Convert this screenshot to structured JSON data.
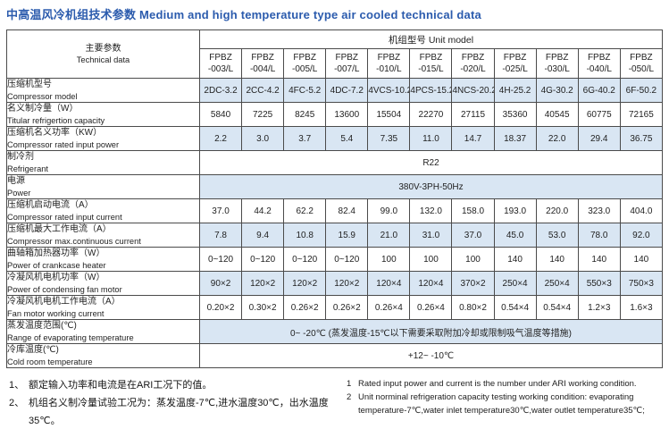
{
  "title": "中高温风冷机组技术参数 Medium and high temperature type air cooled technical data",
  "colors": {
    "title_blue": "#2b5bad",
    "row_shade": "#d9e6f3",
    "border": "#4b4b4b"
  },
  "table": {
    "corner": {
      "cn": "主要参数",
      "en": "Technical data"
    },
    "unit_model_header": "机组型号  Unit model",
    "unit_models": [
      {
        "line1": "FPBZ",
        "line2": "-003/L"
      },
      {
        "line1": "FPBZ",
        "line2": "-004/L"
      },
      {
        "line1": "FPBZ",
        "line2": "-005/L"
      },
      {
        "line1": "FPBZ",
        "line2": "-007/L"
      },
      {
        "line1": "FPBZ",
        "line2": "-010/L"
      },
      {
        "line1": "FPBZ",
        "line2": "-015/L"
      },
      {
        "line1": "FPBZ",
        "line2": "-020/L"
      },
      {
        "line1": "FPBZ",
        "line2": "-025/L"
      },
      {
        "line1": "FPBZ",
        "line2": "-030/L"
      },
      {
        "line1": "FPBZ",
        "line2": "-040/L"
      },
      {
        "line1": "FPBZ",
        "line2": "-050/L"
      }
    ],
    "rows": [
      {
        "label_cn": "压缩机型号",
        "label_en": "Compressor model",
        "shade": true,
        "values": [
          "2DC-3.2",
          "2CC-4.2",
          "4FC-5.2",
          "4DC-7.2",
          "4VCS-10.2",
          "4PCS-15.2",
          "4NCS-20.2",
          "4H-25.2",
          "4G-30.2",
          "6G-40.2",
          "6F-50.2"
        ]
      },
      {
        "label_cn": "名义制冷量（W）",
        "label_en": "Titular refrigertion capacity",
        "shade": false,
        "values": [
          "5840",
          "7225",
          "8245",
          "13600",
          "15504",
          "22270",
          "27115",
          "35360",
          "40545",
          "60775",
          "72165"
        ]
      },
      {
        "label_cn": "压缩机名义功率（KW）",
        "label_en": "Compressor rated input power",
        "shade": true,
        "values": [
          "2.2",
          "3.0",
          "3.7",
          "5.4",
          "7.35",
          "11.0",
          "14.7",
          "18.37",
          "22.0",
          "29.4",
          "36.75"
        ]
      },
      {
        "label_cn": "制冷剂",
        "label_en": "Refrigerant",
        "shade": false,
        "merged": "R22"
      },
      {
        "label_cn": "电源",
        "label_en": "Power",
        "shade": true,
        "merged": "380V-3PH-50Hz"
      },
      {
        "label_cn": "压缩机启动电流（A）",
        "label_en": "Compressor rated input current",
        "shade": false,
        "values": [
          "37.0",
          "44.2",
          "62.2",
          "82.4",
          "99.0",
          "132.0",
          "158.0",
          "193.0",
          "220.0",
          "323.0",
          "404.0"
        ]
      },
      {
        "label_cn": "压缩机最大工作电流（A）",
        "label_en": "Compressor max.continuous current",
        "shade": true,
        "values": [
          "7.8",
          "9.4",
          "10.8",
          "15.9",
          "21.0",
          "31.0",
          "37.0",
          "45.0",
          "53.0",
          "78.0",
          "92.0"
        ]
      },
      {
        "label_cn": "曲轴箱加热器功率（W）",
        "label_en": "Power of crankcase heater",
        "shade": false,
        "values": [
          "0~120",
          "0~120",
          "0~120",
          "0~120",
          "100",
          "100",
          "100",
          "140",
          "140",
          "140",
          "140"
        ]
      },
      {
        "label_cn": "冷凝风机电机功率（W）",
        "label_en": "Power of condensing fan motor",
        "shade": true,
        "values": [
          "90×2",
          "120×2",
          "120×2",
          "120×2",
          "120×4",
          "120×4",
          "370×2",
          "250×4",
          "250×4",
          "550×3",
          "750×3"
        ]
      },
      {
        "label_cn": "冷凝风机电机工作电流（A）",
        "label_en": "Fan motor working current",
        "shade": false,
        "values": [
          "0.20×2",
          "0.30×2",
          "0.26×2",
          "0.26×2",
          "0.26×4",
          "0.26×4",
          "0.80×2",
          "0.54×4",
          "0.54×4",
          "1.2×3",
          "1.6×3"
        ]
      },
      {
        "label_cn": "蒸发温度范围(℃)",
        "label_en": "Range of evaporating temperature",
        "shade": true,
        "merged": "0~ -20℃ (蒸发温度-15℃以下需要采取附加冷却或限制吸气温度等措施)"
      },
      {
        "label_cn": "冷库温度(℃)",
        "label_en": "Cold room temperature",
        "shade": false,
        "merged": "+12~ -10℃"
      }
    ]
  },
  "notes_cn": [
    {
      "num": "1、",
      "text": "额定输入功率和电流是在ARI工况下的值。"
    },
    {
      "num": "2、",
      "text": "机组名义制冷量试验工况为：蒸发温度-7℃,进水温度30℃，出水温度35℃。"
    }
  ],
  "notes_en": [
    {
      "num": "1",
      "text": "Rated input power and current is the number under ARI working condition."
    },
    {
      "num": "2",
      "text": "Unit norminal refrigeration capacity testing working condition: evaporating temperature-7℃,water inlet temperature30℃,water outlet temperature35℃;"
    }
  ]
}
